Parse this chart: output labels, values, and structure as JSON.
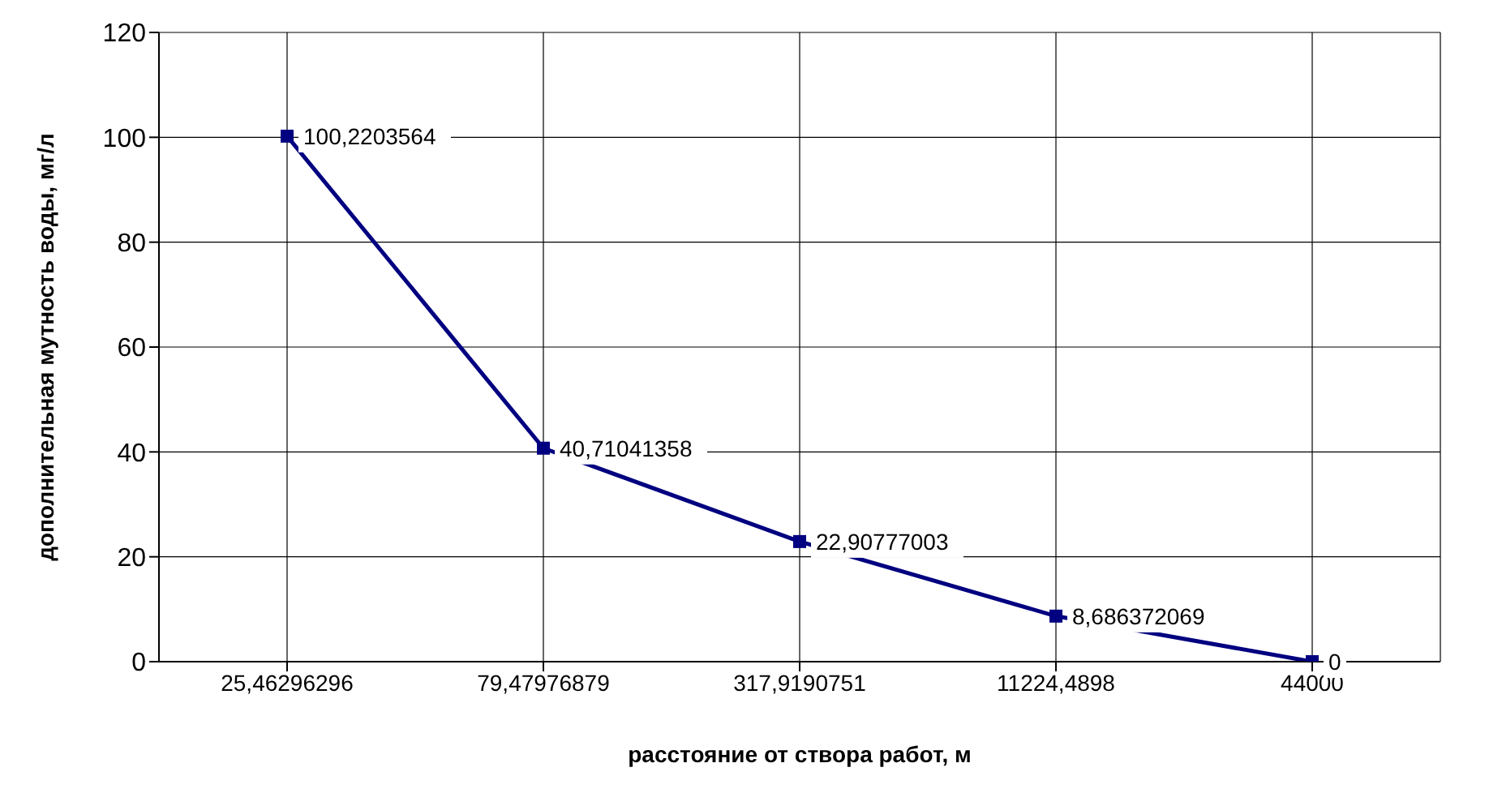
{
  "chart_data": {
    "type": "line",
    "xlabel": "расстояние от створа работ, м",
    "ylabel": "дополнительная мутность воды, мг/л",
    "categories": [
      "25,46296296",
      "79,47976879",
      "317,9190751",
      "11224,4898",
      "44000"
    ],
    "series": [
      {
        "color": "#000080",
        "values": [
          100.2203564,
          40.71041358,
          22.90777003,
          8.686372069,
          0
        ],
        "value_labels": [
          "100,2203564",
          "40,71041358",
          "22,90777003",
          "8,686372069",
          "0"
        ]
      }
    ],
    "ylim": [
      0,
      120
    ],
    "yticks": [
      0,
      20,
      40,
      60,
      80,
      100,
      120
    ],
    "grid": true,
    "marker": "square",
    "line_style": "solid"
  }
}
